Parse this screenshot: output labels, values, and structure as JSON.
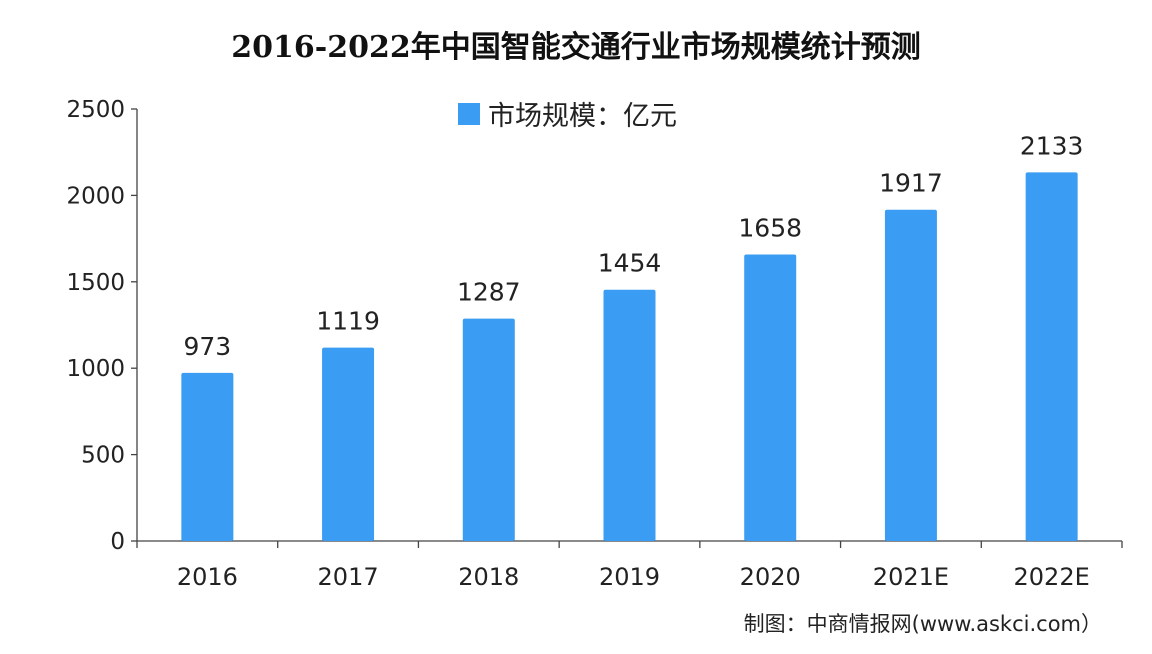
{
  "chart_data": {
    "type": "bar",
    "title": "2016-2022年中国智能交通行业市场规模统计预测",
    "categories": [
      "2016",
      "2017",
      "2018",
      "2019",
      "2020",
      "2021E",
      "2022E"
    ],
    "series": [
      {
        "name": "市场规模：亿元",
        "values": [
          973,
          1119,
          1287,
          1454,
          1658,
          1917,
          2133
        ]
      }
    ],
    "data_labels": [
      "973",
      "1119",
      "1287",
      "1454",
      "1658",
      "1917",
      "2133"
    ],
    "ylim": [
      0,
      2500
    ],
    "yticks": [
      0,
      500,
      1000,
      1500,
      2000,
      2500
    ],
    "grid": false,
    "legend_position": "top-center",
    "bar_color": "#3a9cf2",
    "source": "制图：中商情报网(www.askci.com）"
  }
}
